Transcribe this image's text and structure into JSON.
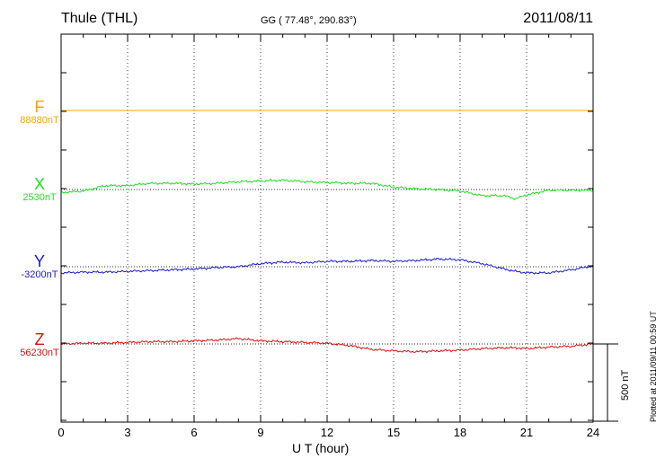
{
  "header": {
    "station": "Thule (THL)",
    "coords": "GG ( 77.48°, 290.83°)",
    "date": "2011/08/11"
  },
  "plotted": "Plotted at 2011/09/11 00:59 UT",
  "colors": {
    "F": "#f0a800",
    "X": "#22dd22",
    "Y": "#1a1acc",
    "Z": "#dd1111"
  },
  "chart_data": {
    "type": "line",
    "title": "Thule (THL)",
    "subtitle": "GG ( 77.48°, 290.83°)",
    "xlabel": "U T (hour)",
    "ylabel": "",
    "xlim": [
      0,
      24
    ],
    "x_ticks": [
      0,
      3,
      6,
      9,
      12,
      15,
      18,
      21,
      24
    ],
    "x_tick_labels": [
      "0",
      "3",
      "6",
      "9",
      "12",
      "15",
      "18",
      "21",
      "24"
    ],
    "grid": true,
    "scale_bar": {
      "value_nT": 500,
      "label": "500 nT"
    },
    "series": [
      {
        "name": "F",
        "baseline_label": "88880nT",
        "baseline_nT": 88880,
        "x": [
          0,
          24
        ],
        "y": [
          88880,
          88880
        ]
      },
      {
        "name": "X",
        "baseline_label": "2530nT",
        "baseline_nT": 2530,
        "x": [
          0,
          1,
          2,
          3,
          4,
          5,
          6,
          7,
          8,
          9,
          10,
          11,
          12,
          13,
          14,
          15,
          16,
          17,
          18,
          19,
          20,
          20.5,
          21,
          22,
          23,
          24
        ],
        "y": [
          2510,
          2520,
          2555,
          2555,
          2570,
          2570,
          2565,
          2570,
          2580,
          2585,
          2590,
          2580,
          2575,
          2570,
          2570,
          2545,
          2535,
          2530,
          2520,
          2490,
          2490,
          2470,
          2495,
          2525,
          2525,
          2525
        ]
      },
      {
        "name": "Y",
        "baseline_label": "-3200nT",
        "baseline_nT": -3200,
        "x": [
          0,
          1,
          2,
          3,
          4,
          5,
          6,
          7,
          8,
          9,
          10,
          11,
          12,
          13,
          14,
          15,
          16,
          17,
          18,
          19,
          20,
          20.5,
          21,
          22,
          23,
          24
        ],
        "y": [
          -3240,
          -3235,
          -3235,
          -3230,
          -3225,
          -3220,
          -3215,
          -3205,
          -3200,
          -3180,
          -3170,
          -3175,
          -3165,
          -3165,
          -3160,
          -3165,
          -3160,
          -3150,
          -3155,
          -3180,
          -3215,
          -3230,
          -3240,
          -3240,
          -3220,
          -3195
        ]
      },
      {
        "name": "Z",
        "baseline_label": "56230nT",
        "baseline_nT": 56230,
        "x": [
          0,
          1,
          2,
          3,
          4,
          5,
          6,
          7,
          8,
          9,
          10,
          11,
          12,
          13,
          14,
          15,
          16,
          17,
          18,
          19,
          20,
          20.5,
          21,
          22,
          23,
          24
        ],
        "y": [
          56230,
          56235,
          56235,
          56240,
          56245,
          56245,
          56250,
          56255,
          56265,
          56250,
          56245,
          56240,
          56235,
          56220,
          56195,
          56185,
          56180,
          56185,
          56190,
          56200,
          56205,
          56205,
          56200,
          56210,
          56215,
          56230
        ]
      }
    ]
  }
}
